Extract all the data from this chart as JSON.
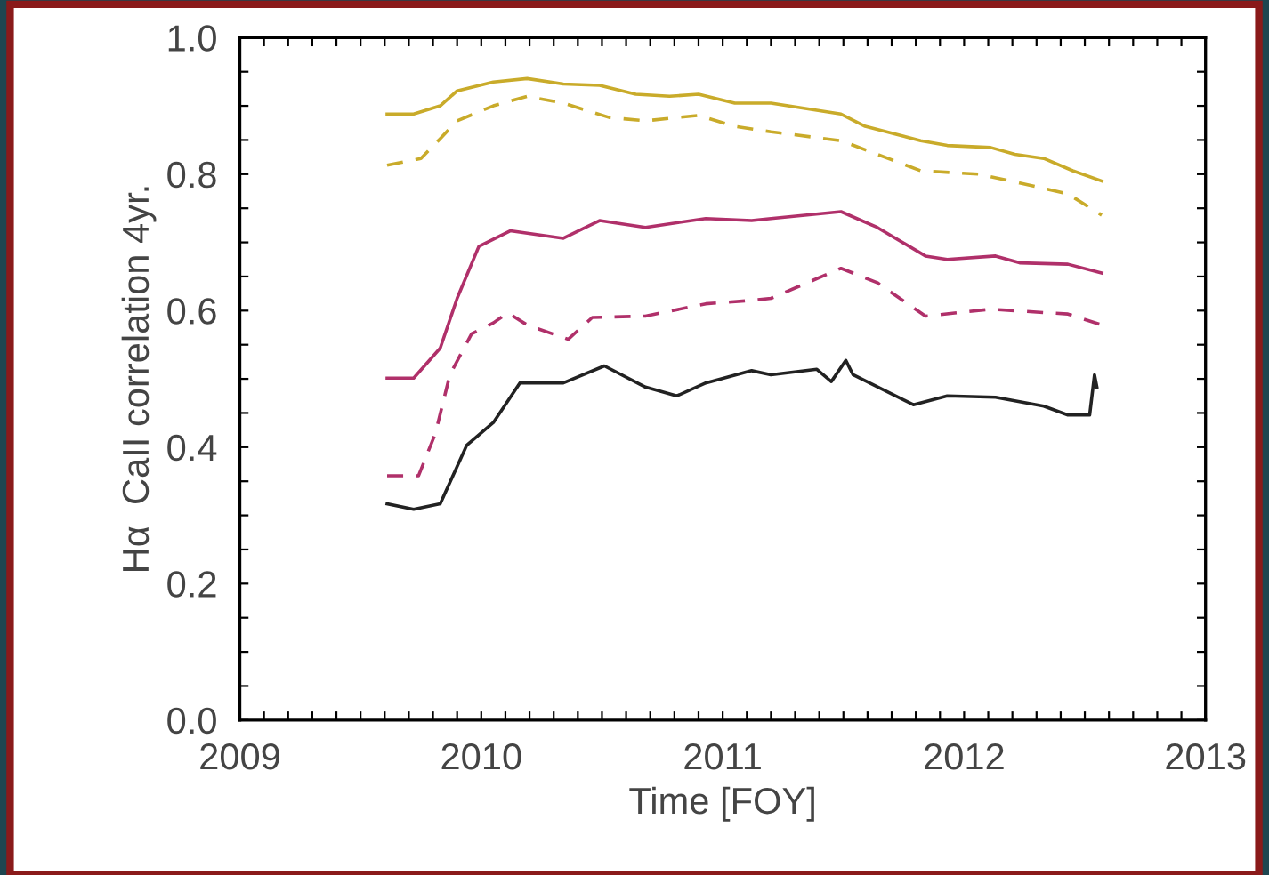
{
  "chart_data": {
    "type": "line",
    "xlabel": "Time [FOY]",
    "ylabel": "Hα  CaII correlation 4yr.",
    "xlim": [
      2009,
      2013
    ],
    "ylim": [
      0.0,
      1.0
    ],
    "xticks": [
      2009,
      {
        "value": 2009.1,
        "label": null
      },
      {
        "value": 2009.2,
        "label": null
      },
      {
        "value": 2009.3,
        "label": null
      },
      {
        "value": 2009.4,
        "label": null
      },
      {
        "value": 2009.5,
        "label": null
      },
      {
        "value": 2009.6,
        "label": null
      },
      {
        "value": 2009.7,
        "label": null
      },
      {
        "value": 2009.8,
        "label": null
      },
      {
        "value": 2009.9,
        "label": null
      },
      2010,
      {
        "value": 2010.1,
        "label": null
      },
      {
        "value": 2010.2,
        "label": null
      },
      {
        "value": 2010.3,
        "label": null
      },
      {
        "value": 2010.4,
        "label": null
      },
      {
        "value": 2010.5,
        "label": null
      },
      {
        "value": 2010.6,
        "label": null
      },
      {
        "value": 2010.7,
        "label": null
      },
      {
        "value": 2010.8,
        "label": null
      },
      {
        "value": 2010.9,
        "label": null
      },
      2011,
      {
        "value": 2011.1,
        "label": null
      },
      {
        "value": 2011.2,
        "label": null
      },
      {
        "value": 2011.3,
        "label": null
      },
      {
        "value": 2011.4,
        "label": null
      },
      {
        "value": 2011.5,
        "label": null
      },
      {
        "value": 2011.6,
        "label": null
      },
      {
        "value": 2011.7,
        "label": null
      },
      {
        "value": 2011.8,
        "label": null
      },
      {
        "value": 2011.9,
        "label": null
      },
      2012,
      {
        "value": 2012.1,
        "label": null
      },
      {
        "value": 2012.2,
        "label": null
      },
      {
        "value": 2012.3,
        "label": null
      },
      {
        "value": 2012.4,
        "label": null
      },
      {
        "value": 2012.5,
        "label": null
      },
      {
        "value": 2012.6,
        "label": null
      },
      {
        "value": 2012.7,
        "label": null
      },
      {
        "value": 2012.8,
        "label": null
      },
      {
        "value": 2012.9,
        "label": null
      },
      2013
    ],
    "yticks": [
      {
        "value": 0,
        "label": "0.0"
      },
      {
        "value": 0.05,
        "label": null
      },
      {
        "value": 0.1,
        "label": null
      },
      {
        "value": 0.15,
        "label": null
      },
      0.2,
      {
        "value": 0.25,
        "label": null
      },
      {
        "value": 0.3,
        "label": null
      },
      {
        "value": 0.35,
        "label": null
      },
      0.4,
      {
        "value": 0.45,
        "label": null
      },
      {
        "value": 0.5,
        "label": null
      },
      {
        "value": 0.55,
        "label": null
      },
      0.6,
      {
        "value": 0.65,
        "label": null
      },
      {
        "value": 0.7,
        "label": null
      },
      {
        "value": 0.75,
        "label": null
      },
      0.8,
      {
        "value": 0.85,
        "label": null
      },
      {
        "value": 0.9,
        "label": null
      },
      {
        "value": 0.95,
        "label": null
      },
      {
        "value": 1,
        "label": "1.0"
      }
    ],
    "grid": false,
    "legend": false,
    "series": [
      {
        "color": "#c9ab2a",
        "line_style": "solid",
        "x": [
          2009.61,
          2009.72,
          2009.83,
          2009.9,
          2010.05,
          2010.19,
          2010.34,
          2010.49,
          2010.64,
          2010.78,
          2010.9,
          2011.05,
          2011.2,
          2011.49,
          2011.59,
          2011.82,
          2011.93,
          2012.11,
          2012.21,
          2012.33,
          2012.45,
          2012.57
        ],
        "values": [
          0.888,
          0.888,
          0.9,
          0.922,
          0.935,
          0.94,
          0.932,
          0.93,
          0.917,
          0.914,
          0.917,
          0.904,
          0.904,
          0.888,
          0.87,
          0.849,
          0.842,
          0.839,
          0.829,
          0.823,
          0.805,
          0.79
        ]
      },
      {
        "color": "#c9ab2a",
        "line_style": "dashed",
        "x": [
          2009.61,
          2009.75,
          2009.83,
          2009.9,
          2010.05,
          2010.19,
          2010.34,
          2010.53,
          2010.68,
          2010.9,
          2011.05,
          2011.2,
          2011.49,
          2011.82,
          2012.06,
          2012.23,
          2012.43,
          2012.57
        ],
        "values": [
          0.813,
          0.823,
          0.852,
          0.878,
          0.9,
          0.914,
          0.904,
          0.883,
          0.878,
          0.886,
          0.87,
          0.862,
          0.849,
          0.805,
          0.8,
          0.787,
          0.771,
          0.74
        ]
      },
      {
        "color": "#b0306a",
        "line_style": "solid",
        "x": [
          2009.61,
          2009.72,
          2009.83,
          2009.9,
          2009.99,
          2010.12,
          2010.34,
          2010.49,
          2010.68,
          2010.93,
          2011.12,
          2011.2,
          2011.49,
          2011.64,
          2011.84,
          2011.93,
          2012.13,
          2012.23,
          2012.43,
          2012.57
        ],
        "values": [
          0.501,
          0.501,
          0.545,
          0.618,
          0.694,
          0.717,
          0.706,
          0.732,
          0.722,
          0.735,
          0.732,
          0.735,
          0.745,
          0.722,
          0.68,
          0.675,
          0.68,
          0.67,
          0.668,
          0.655
        ]
      },
      {
        "color": "#b0306a",
        "line_style": "dashed",
        "x": [
          2009.61,
          2009.74,
          2009.81,
          2009.87,
          2009.96,
          2010.05,
          2010.11,
          2010.19,
          2010.36,
          2010.46,
          2010.68,
          2010.93,
          2011.12,
          2011.2,
          2011.49,
          2011.64,
          2011.84,
          2012.11,
          2012.43,
          2012.57
        ],
        "values": [
          0.358,
          0.358,
          0.42,
          0.506,
          0.566,
          0.582,
          0.597,
          0.579,
          0.558,
          0.59,
          0.592,
          0.61,
          0.615,
          0.618,
          0.662,
          0.641,
          0.592,
          0.602,
          0.595,
          0.579
        ]
      },
      {
        "color": "#222222",
        "line_style": "solid",
        "x": [
          2009.61,
          2009.72,
          2009.83,
          2009.94,
          2010.05,
          2010.16,
          2010.34,
          2010.51,
          2010.68,
          2010.81,
          2010.93,
          2011.12,
          2011.2,
          2011.39,
          2011.45,
          2011.51,
          2011.54,
          2011.79,
          2011.93,
          2012.13,
          2012.33,
          2012.43,
          2012.52,
          2012.54,
          2012.55
        ],
        "values": [
          0.317,
          0.309,
          0.317,
          0.403,
          0.436,
          0.494,
          0.494,
          0.519,
          0.488,
          0.475,
          0.494,
          0.512,
          0.506,
          0.514,
          0.496,
          0.527,
          0.506,
          0.462,
          0.475,
          0.473,
          0.46,
          0.447,
          0.447,
          0.506,
          0.488
        ]
      }
    ]
  }
}
